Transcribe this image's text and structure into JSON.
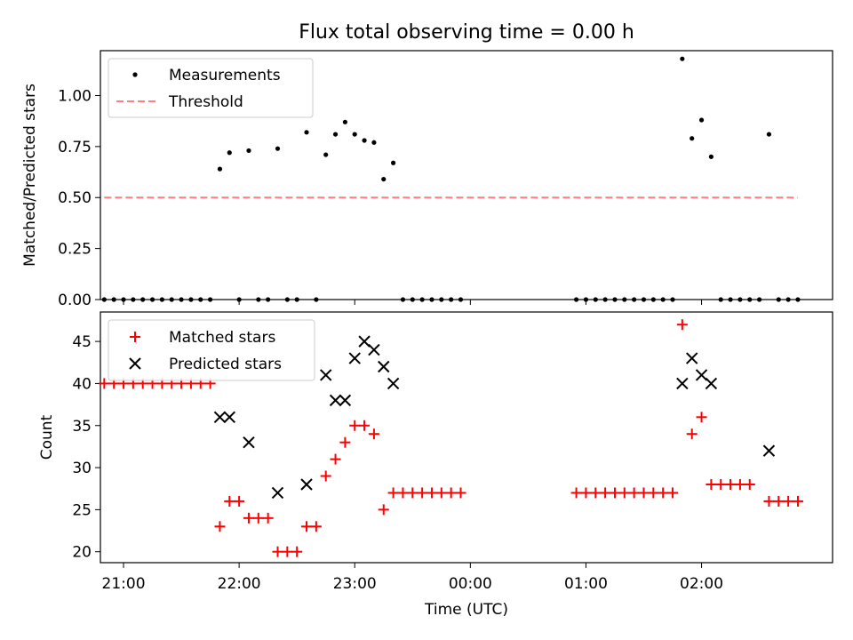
{
  "figure": {
    "title": "Flux total observing time = 0.00 h",
    "xlabel": "Time (UTC)"
  },
  "chart_data": [
    {
      "type": "scatter",
      "ylabel": "Matched/Predicted stars",
      "xlim": [
        "20:48",
        "03:08"
      ],
      "ylim": [
        0,
        1.22
      ],
      "yticks": [
        "0.00",
        "0.25",
        "0.50",
        "0.75",
        "1.00"
      ],
      "ytick_values": [
        0,
        0.25,
        0.5,
        0.75,
        1.0
      ],
      "grid": false,
      "legend_loc": "upper-left",
      "series": [
        {
          "name": "Measurements",
          "marker": "dot",
          "color": "#000000",
          "points": [
            [
              "20:50",
              0
            ],
            [
              "20:55",
              0
            ],
            [
              "21:00",
              0
            ],
            [
              "21:05",
              0
            ],
            [
              "21:10",
              0
            ],
            [
              "21:15",
              0
            ],
            [
              "21:20",
              0
            ],
            [
              "21:25",
              0
            ],
            [
              "21:30",
              0
            ],
            [
              "21:35",
              0
            ],
            [
              "21:40",
              0
            ],
            [
              "21:45",
              0
            ],
            [
              "21:50",
              0.64
            ],
            [
              "21:55",
              0.72
            ],
            [
              "22:00",
              0
            ],
            [
              "22:05",
              0.73
            ],
            [
              "22:10",
              0
            ],
            [
              "22:15",
              0
            ],
            [
              "22:20",
              0.74
            ],
            [
              "22:25",
              0
            ],
            [
              "22:30",
              0
            ],
            [
              "22:35",
              0.82
            ],
            [
              "22:40",
              0
            ],
            [
              "22:45",
              0.71
            ],
            [
              "22:50",
              0.81
            ],
            [
              "22:55",
              0.87
            ],
            [
              "23:00",
              0.81
            ],
            [
              "23:05",
              0.78
            ],
            [
              "23:10",
              0.77
            ],
            [
              "23:15",
              0.59
            ],
            [
              "23:20",
              0.67
            ],
            [
              "23:25",
              0
            ],
            [
              "23:30",
              0
            ],
            [
              "23:35",
              0
            ],
            [
              "23:40",
              0
            ],
            [
              "23:45",
              0
            ],
            [
              "23:50",
              0
            ],
            [
              "23:55",
              0
            ],
            [
              "00:55",
              0
            ],
            [
              "01:00",
              0
            ],
            [
              "01:05",
              0
            ],
            [
              "01:10",
              0
            ],
            [
              "01:15",
              0
            ],
            [
              "01:20",
              0
            ],
            [
              "01:25",
              0
            ],
            [
              "01:30",
              0
            ],
            [
              "01:35",
              0
            ],
            [
              "01:40",
              0
            ],
            [
              "01:45",
              0
            ],
            [
              "01:50",
              1.18
            ],
            [
              "01:55",
              0.79
            ],
            [
              "02:00",
              0.88
            ],
            [
              "02:05",
              0.7
            ],
            [
              "02:10",
              0
            ],
            [
              "02:15",
              0
            ],
            [
              "02:20",
              0
            ],
            [
              "02:25",
              0
            ],
            [
              "02:30",
              0
            ],
            [
              "02:35",
              0.81
            ],
            [
              "02:40",
              0
            ],
            [
              "02:45",
              0
            ],
            [
              "02:50",
              0
            ]
          ]
        },
        {
          "name": "Threshold",
          "style": "dashed",
          "color": "#ff7f7f",
          "points": [
            [
              "20:50",
              0.5
            ],
            [
              "02:50",
              0.5
            ]
          ]
        }
      ]
    },
    {
      "type": "scatter",
      "ylabel": "Count",
      "xlim": [
        "20:48",
        "03:08"
      ],
      "ylim": [
        18.7,
        48.5
      ],
      "yticks": [
        "20",
        "25",
        "30",
        "35",
        "40",
        "45"
      ],
      "ytick_values": [
        20,
        25,
        30,
        35,
        40,
        45
      ],
      "xticks": [
        "21:00",
        "22:00",
        "23:00",
        "00:00",
        "01:00",
        "02:00"
      ],
      "grid": false,
      "legend_loc": "upper-left",
      "series": [
        {
          "name": "Matched stars",
          "marker": "plus",
          "color": "#ff0000",
          "points": [
            [
              "20:50",
              40
            ],
            [
              "20:55",
              40
            ],
            [
              "21:00",
              40
            ],
            [
              "21:05",
              40
            ],
            [
              "21:10",
              40
            ],
            [
              "21:15",
              40
            ],
            [
              "21:20",
              40
            ],
            [
              "21:25",
              40
            ],
            [
              "21:30",
              40
            ],
            [
              "21:35",
              40
            ],
            [
              "21:40",
              40
            ],
            [
              "21:45",
              40
            ],
            [
              "21:50",
              23
            ],
            [
              "21:55",
              26
            ],
            [
              "22:00",
              26
            ],
            [
              "22:05",
              24
            ],
            [
              "22:10",
              24
            ],
            [
              "22:15",
              24
            ],
            [
              "22:20",
              20
            ],
            [
              "22:25",
              20
            ],
            [
              "22:30",
              20
            ],
            [
              "22:35",
              23
            ],
            [
              "22:40",
              23
            ],
            [
              "22:45",
              29
            ],
            [
              "22:50",
              31
            ],
            [
              "22:55",
              33
            ],
            [
              "23:00",
              35
            ],
            [
              "23:05",
              35
            ],
            [
              "23:10",
              34
            ],
            [
              "23:15",
              25
            ],
            [
              "23:20",
              27
            ],
            [
              "23:25",
              27
            ],
            [
              "23:30",
              27
            ],
            [
              "23:35",
              27
            ],
            [
              "23:40",
              27
            ],
            [
              "23:45",
              27
            ],
            [
              "23:50",
              27
            ],
            [
              "23:55",
              27
            ],
            [
              "00:55",
              27
            ],
            [
              "01:00",
              27
            ],
            [
              "01:05",
              27
            ],
            [
              "01:10",
              27
            ],
            [
              "01:15",
              27
            ],
            [
              "01:20",
              27
            ],
            [
              "01:25",
              27
            ],
            [
              "01:30",
              27
            ],
            [
              "01:35",
              27
            ],
            [
              "01:40",
              27
            ],
            [
              "01:45",
              27
            ],
            [
              "01:50",
              47
            ],
            [
              "01:55",
              34
            ],
            [
              "02:00",
              36
            ],
            [
              "02:05",
              28
            ],
            [
              "02:10",
              28
            ],
            [
              "02:15",
              28
            ],
            [
              "02:20",
              28
            ],
            [
              "02:25",
              28
            ],
            [
              "02:35",
              26
            ],
            [
              "02:40",
              26
            ],
            [
              "02:45",
              26
            ],
            [
              "02:50",
              26
            ]
          ]
        },
        {
          "name": "Predicted stars",
          "marker": "x",
          "color": "#000000",
          "points": [
            [
              "21:50",
              36
            ],
            [
              "21:55",
              36
            ],
            [
              "22:05",
              33
            ],
            [
              "22:20",
              27
            ],
            [
              "22:35",
              28
            ],
            [
              "22:45",
              41
            ],
            [
              "22:50",
              38
            ],
            [
              "22:55",
              38
            ],
            [
              "23:00",
              43
            ],
            [
              "23:05",
              45
            ],
            [
              "23:10",
              44
            ],
            [
              "23:15",
              42
            ],
            [
              "23:20",
              40
            ],
            [
              "01:50",
              40
            ],
            [
              "01:55",
              43
            ],
            [
              "02:00",
              41
            ],
            [
              "02:05",
              40
            ],
            [
              "02:35",
              32
            ]
          ]
        }
      ]
    }
  ]
}
